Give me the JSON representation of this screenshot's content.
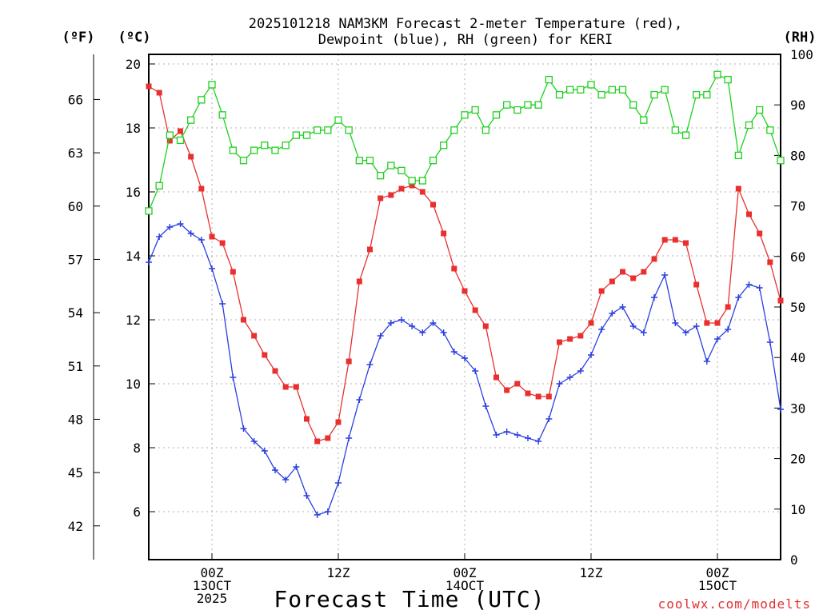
{
  "chart_data": {
    "type": "line",
    "title": [
      "2025101218 NAM3KM Forecast 2-meter Temperature (red),",
      "Dewpoint (blue), RH (green) for KERI"
    ],
    "xlabel": "Forecast Time (UTC)",
    "units": {
      "fahrenheit": "(ºF)",
      "celsius": "(ºC)",
      "rh": "(RH)"
    },
    "credit": "coolwx.com/modelts",
    "x_range": [
      18,
      78
    ],
    "x_ticks": [
      {
        "x": 24,
        "lines": [
          "00Z",
          "13OCT",
          "2025"
        ]
      },
      {
        "x": 36,
        "lines": [
          "12Z"
        ]
      },
      {
        "x": 48,
        "lines": [
          "00Z",
          "14OCT"
        ]
      },
      {
        "x": 60,
        "lines": [
          "12Z"
        ]
      },
      {
        "x": 72,
        "lines": [
          "00Z",
          "15OCT"
        ]
      }
    ],
    "ylim_c": [
      4.5,
      20.3
    ],
    "yticks_c": [
      6,
      8,
      10,
      12,
      14,
      16,
      18,
      20
    ],
    "yticks_f": [
      42,
      45,
      48,
      51,
      54,
      57,
      60,
      63,
      66
    ],
    "ylim_rh": [
      0,
      100
    ],
    "yticks_rh": [
      0,
      10,
      20,
      30,
      40,
      50,
      60,
      70,
      80,
      90,
      100
    ],
    "grid": true,
    "series": [
      {
        "name": "2-meter Temperature",
        "axis": "celsius",
        "color": "#e83030",
        "marker": "filled-square",
        "hours": [
          18,
          19,
          20,
          21,
          22,
          23,
          24,
          25,
          26,
          27,
          28,
          29,
          30,
          31,
          32,
          33,
          34,
          35,
          36,
          37,
          38,
          39,
          40,
          41,
          42,
          43,
          44,
          45,
          46,
          47,
          48,
          49,
          50,
          51,
          52,
          53,
          54,
          55,
          56,
          57,
          58,
          59,
          60,
          61,
          62,
          63,
          64,
          65,
          66,
          67,
          68,
          69,
          70,
          71,
          72,
          73,
          74,
          75,
          76,
          77,
          78
        ],
        "values": [
          19.3,
          19.1,
          17.6,
          17.9,
          17.1,
          16.1,
          14.6,
          14.4,
          13.5,
          12.0,
          11.5,
          10.9,
          10.4,
          9.9,
          9.9,
          8.9,
          8.2,
          8.3,
          8.8,
          10.7,
          13.2,
          14.2,
          15.8,
          15.9,
          16.1,
          16.2,
          16.0,
          15.6,
          14.7,
          13.6,
          12.9,
          12.3,
          11.8,
          10.2,
          9.8,
          10.0,
          9.7,
          9.6,
          9.6,
          11.3,
          11.4,
          11.5,
          11.9,
          12.9,
          13.2,
          13.5,
          13.3,
          13.5,
          13.9,
          14.5,
          14.5,
          14.4,
          13.1,
          11.9,
          11.9,
          12.4,
          16.1,
          15.3,
          14.7,
          13.8,
          12.6
        ]
      },
      {
        "name": "Dewpoint",
        "axis": "celsius",
        "color": "#2a3fe0",
        "marker": "plus",
        "hours": [
          18,
          19,
          20,
          21,
          22,
          23,
          24,
          25,
          26,
          27,
          28,
          29,
          30,
          31,
          32,
          33,
          34,
          35,
          36,
          37,
          38,
          39,
          40,
          41,
          42,
          43,
          44,
          45,
          46,
          47,
          48,
          49,
          50,
          51,
          52,
          53,
          54,
          55,
          56,
          57,
          58,
          59,
          60,
          61,
          62,
          63,
          64,
          65,
          66,
          67,
          68,
          69,
          70,
          71,
          72,
          73,
          74,
          75,
          76,
          77,
          78
        ],
        "values": [
          13.8,
          14.6,
          14.9,
          15.0,
          14.7,
          14.5,
          13.6,
          12.5,
          10.2,
          8.6,
          8.2,
          7.9,
          7.3,
          7.0,
          7.4,
          6.5,
          5.9,
          6.0,
          6.9,
          8.3,
          9.5,
          10.6,
          11.5,
          11.9,
          12.0,
          11.8,
          11.6,
          11.9,
          11.6,
          11.0,
          10.8,
          10.4,
          9.3,
          8.4,
          8.5,
          8.4,
          8.3,
          8.2,
          8.9,
          10.0,
          10.2,
          10.4,
          10.9,
          11.7,
          12.2,
          12.4,
          11.8,
          11.6,
          12.7,
          13.4,
          11.9,
          11.6,
          11.8,
          10.7,
          11.4,
          11.7,
          12.7,
          13.1,
          13.0,
          11.3,
          9.2
        ]
      },
      {
        "name": "RH",
        "axis": "rh",
        "color": "#20d020",
        "marker": "open-square",
        "hours": [
          18,
          19,
          20,
          21,
          22,
          23,
          24,
          25,
          26,
          27,
          28,
          29,
          30,
          31,
          32,
          33,
          34,
          35,
          36,
          37,
          38,
          39,
          40,
          41,
          42,
          43,
          44,
          45,
          46,
          47,
          48,
          49,
          50,
          51,
          52,
          53,
          54,
          55,
          56,
          57,
          58,
          59,
          60,
          61,
          62,
          63,
          64,
          65,
          66,
          67,
          68,
          69,
          70,
          71,
          72,
          73,
          74,
          75,
          76,
          77,
          78
        ],
        "values": [
          69,
          74,
          84,
          83,
          87,
          91,
          94,
          88,
          81,
          79,
          81,
          82,
          81,
          82,
          84,
          84,
          85,
          85,
          87,
          85,
          79,
          79,
          76,
          78,
          77,
          75,
          75,
          79,
          82,
          85,
          88,
          89,
          85,
          88,
          90,
          89,
          90,
          90,
          95,
          92,
          93,
          93,
          94,
          92,
          93,
          93,
          90,
          87,
          92,
          93,
          85,
          84,
          92,
          92,
          96,
          95,
          80,
          86,
          89,
          85,
          79
        ]
      }
    ]
  }
}
